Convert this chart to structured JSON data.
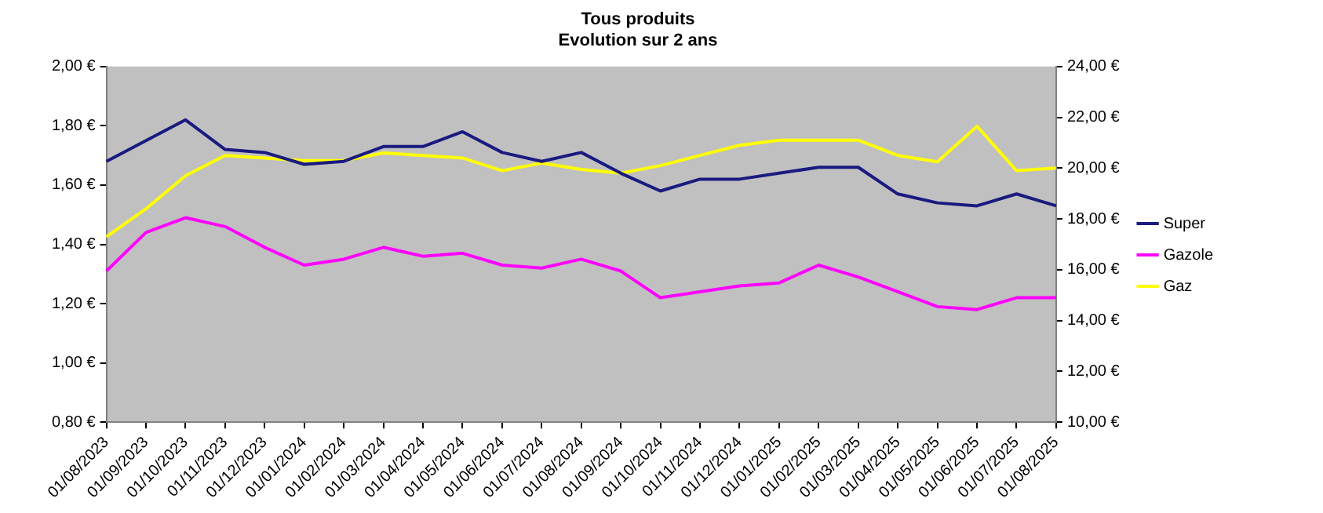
{
  "chart_data": {
    "type": "line",
    "title": "Tous produits",
    "subtitle": "Evolution sur 2 ans",
    "categories": [
      "01/08/2023",
      "01/09/2023",
      "01/10/2023",
      "01/11/2023",
      "01/12/2023",
      "01/01/2024",
      "01/02/2024",
      "01/03/2024",
      "01/04/2024",
      "01/05/2024",
      "01/06/2024",
      "01/07/2024",
      "01/08/2024",
      "01/09/2024",
      "01/10/2024",
      "01/11/2024",
      "01/12/2024",
      "01/01/2025",
      "01/02/2025",
      "01/03/2025",
      "01/04/2025",
      "01/05/2025",
      "01/06/2025",
      "01/07/2025",
      "01/08/2025"
    ],
    "series": [
      {
        "name": "Super",
        "color": "#1a1a80",
        "values": [
          1.68,
          1.75,
          1.82,
          1.72,
          1.71,
          1.67,
          1.68,
          1.73,
          1.73,
          1.78,
          1.71,
          1.68,
          1.71,
          1.64,
          1.58,
          1.62,
          1.62,
          1.64,
          1.66,
          1.66,
          1.57,
          1.54,
          1.53,
          1.57,
          1.53
        ]
      },
      {
        "name": "Gazole",
        "color": "#ff00ff",
        "values": [
          1.31,
          1.44,
          1.49,
          1.46,
          1.39,
          1.33,
          1.35,
          1.39,
          1.36,
          1.37,
          1.33,
          1.32,
          1.35,
          1.31,
          1.22,
          1.24,
          1.26,
          1.27,
          1.33,
          1.29,
          1.24,
          1.19,
          1.18,
          1.22,
          1.22
        ]
      },
      {
        "name": "Gaz",
        "color": "#ffff00",
        "axis": "y2",
        "values": [
          17.3,
          18.4,
          19.7,
          20.5,
          20.4,
          20.3,
          20.3,
          20.6,
          20.5,
          20.4,
          19.9,
          20.2,
          19.95,
          19.8,
          20.1,
          20.5,
          20.9,
          21.1,
          21.1,
          21.1,
          20.5,
          20.25,
          21.65,
          19.9,
          20.0
        ]
      }
    ],
    "ylim": [
      0.8,
      2.0
    ],
    "yticks": [
      {
        "value": 0.8,
        "label": "0,80 €"
      },
      {
        "value": 1.0,
        "label": "1,00 €"
      },
      {
        "value": 1.2,
        "label": "1,20 €"
      },
      {
        "value": 1.4,
        "label": "1,40 €"
      },
      {
        "value": 1.6,
        "label": "1,60 €"
      },
      {
        "value": 1.8,
        "label": "1,80 €"
      },
      {
        "value": 2.0,
        "label": "2,00 €"
      }
    ],
    "y2lim": [
      10,
      24
    ],
    "y2ticks": [
      {
        "value": 10,
        "label": "10,00 €"
      },
      {
        "value": 12,
        "label": "12,00 €"
      },
      {
        "value": 14,
        "label": "14,00 €"
      },
      {
        "value": 16,
        "label": "16,00 €"
      },
      {
        "value": 18,
        "label": "18,00 €"
      },
      {
        "value": 20,
        "label": "20,00 €"
      },
      {
        "value": 22,
        "label": "22,00 €"
      },
      {
        "value": 24,
        "label": "24,00 €"
      }
    ],
    "grid": false,
    "legend": "right",
    "marker": "none",
    "line_style": "solid"
  }
}
